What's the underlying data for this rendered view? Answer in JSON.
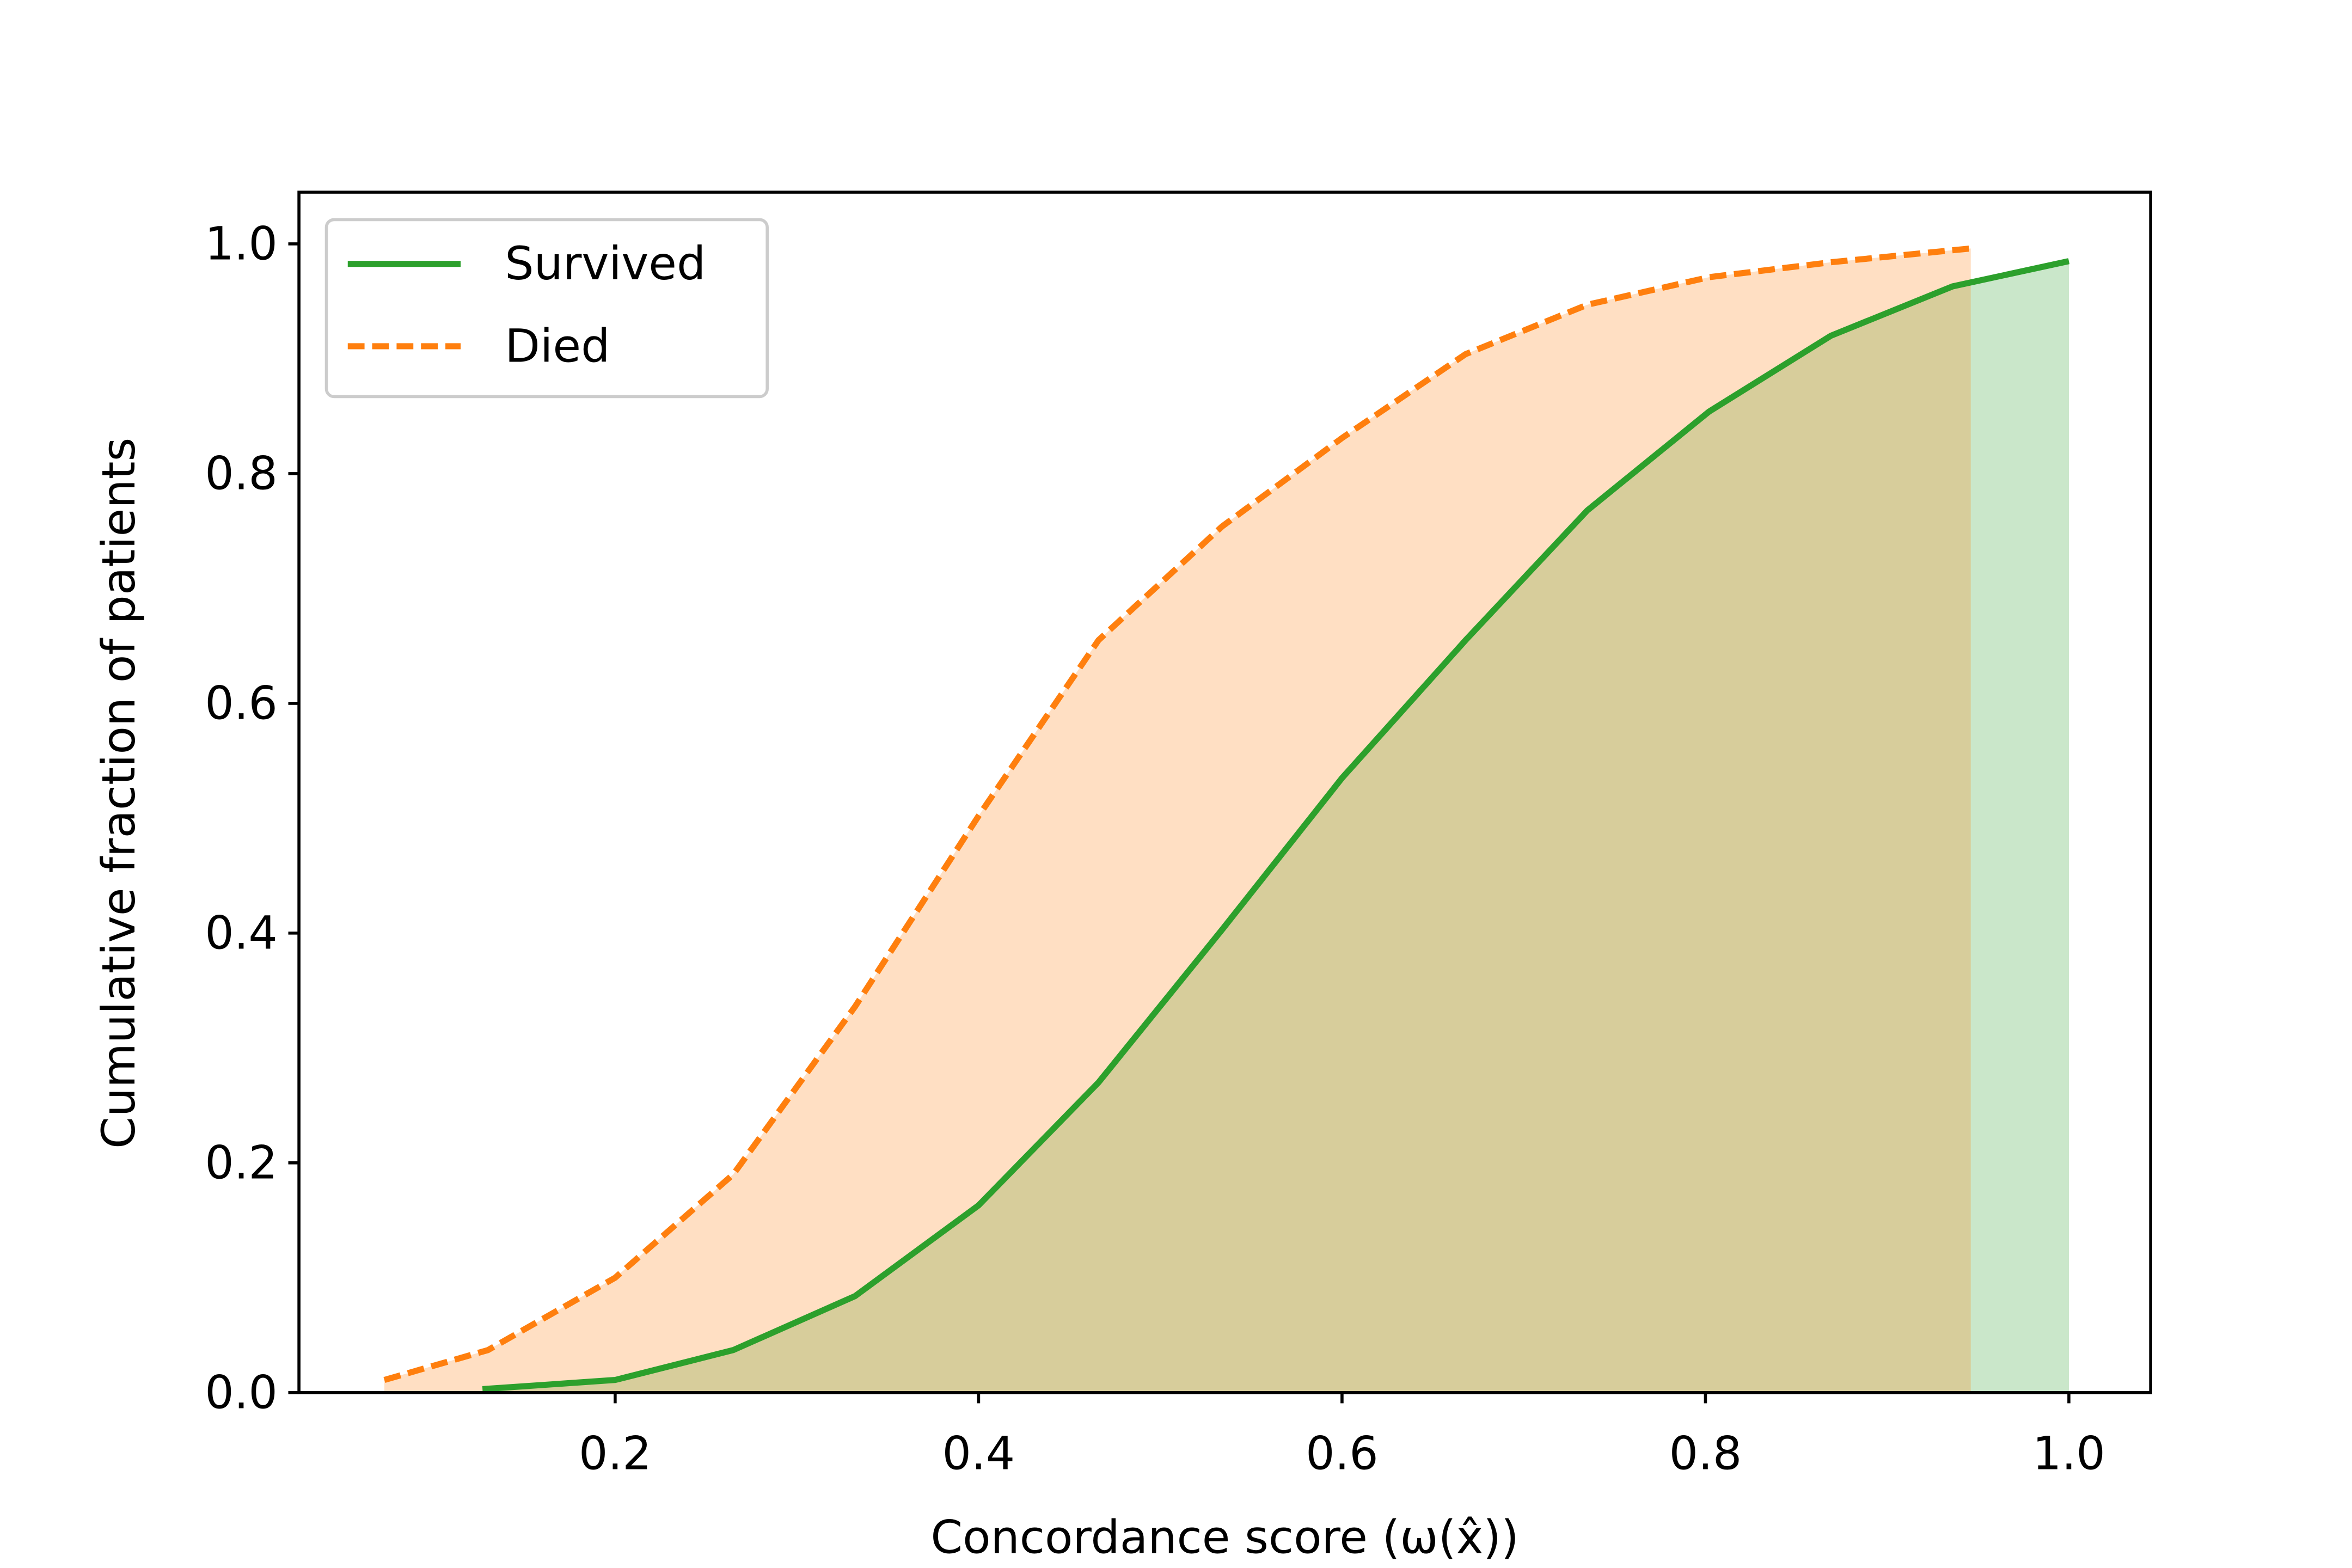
{
  "chart_data": {
    "type": "line",
    "xlabel": "Concordance score (ω(x̂))",
    "ylabel": "Cumulative fraction of patients",
    "xlim": [
      0.026,
      1.045
    ],
    "ylim": [
      0,
      1.045
    ],
    "xticks": [
      0.2,
      0.4,
      0.6,
      0.8,
      {
        "value": 1,
        "label": "1.0"
      }
    ],
    "yticks": [
      {
        "value": 0,
        "label": "0.0"
      },
      0.2,
      0.4,
      0.6,
      0.8,
      {
        "value": 1,
        "label": "1.0"
      }
    ],
    "legend": "upper left",
    "fill_under": true,
    "series": [
      {
        "name": "Survived",
        "color": "#2ca02c",
        "linestyle": "solid",
        "x": [
          0.127,
          0.2,
          0.265,
          0.332,
          0.4,
          0.466,
          0.534,
          0.6,
          0.668,
          0.735,
          0.802,
          0.869,
          0.936,
          1.0
        ],
        "values": [
          0.003,
          0.011,
          0.037,
          0.084,
          0.163,
          0.27,
          0.403,
          0.535,
          0.655,
          0.768,
          0.854,
          0.92,
          0.963,
          0.985
        ]
      },
      {
        "name": "Died",
        "color": "#ff7f0e",
        "linestyle": "dashed",
        "x": [
          0.073,
          0.13,
          0.2,
          0.265,
          0.332,
          0.4,
          0.466,
          0.534,
          0.6,
          0.668,
          0.735,
          0.802,
          0.869,
          0.946
        ],
        "values": [
          0.011,
          0.037,
          0.1,
          0.19,
          0.336,
          0.502,
          0.655,
          0.754,
          0.831,
          0.904,
          0.947,
          0.971,
          0.984,
          0.996
        ]
      }
    ]
  }
}
